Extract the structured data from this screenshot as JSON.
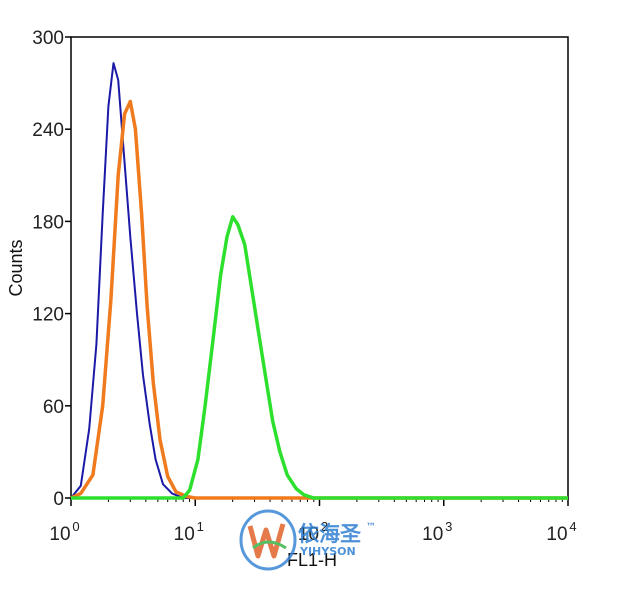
{
  "chart_data": {
    "type": "line",
    "xscale": "log",
    "xlim": [
      1,
      10000
    ],
    "ylim": [
      0,
      300
    ],
    "xlabel": "FL1-H",
    "ylabel": "Counts",
    "x_ticks": [
      {
        "base": "10",
        "exp": "0",
        "value": 1
      },
      {
        "base": "10",
        "exp": "1",
        "value": 10
      },
      {
        "base": "10",
        "exp": "2",
        "value": 100
      },
      {
        "base": "10",
        "exp": "3",
        "value": 1000
      },
      {
        "base": "10",
        "exp": "4",
        "value": 10000
      }
    ],
    "y_ticks": [
      "0",
      "60",
      "120",
      "180",
      "240",
      "300"
    ],
    "series": [
      {
        "color": "#1a1aa6",
        "x": [
          1.0,
          1.2,
          1.4,
          1.6,
          1.8,
          2.0,
          2.2,
          2.4,
          2.7,
          3.0,
          3.4,
          3.8,
          4.3,
          4.8,
          5.5,
          6.5,
          8.0,
          10.0,
          100.0,
          10000.0
        ],
        "y": [
          0,
          8,
          45,
          100,
          185,
          255,
          283,
          272,
          218,
          170,
          120,
          80,
          48,
          25,
          9,
          3,
          0,
          0,
          0,
          0
        ]
      },
      {
        "color": "#f07a1e",
        "x": [
          1.0,
          1.2,
          1.5,
          1.8,
          2.1,
          2.4,
          2.7,
          3.0,
          3.3,
          3.7,
          4.1,
          4.6,
          5.2,
          6.0,
          7.0,
          8.5,
          10.0,
          100.0,
          10000.0
        ],
        "y": [
          0,
          3,
          15,
          60,
          130,
          210,
          250,
          258,
          240,
          185,
          125,
          75,
          38,
          14,
          4,
          1,
          0,
          0,
          0
        ]
      },
      {
        "color": "#2ee02e",
        "x": [
          1.0,
          8.0,
          9.0,
          10.5,
          12.0,
          14.0,
          16.0,
          18.0,
          20.0,
          22.0,
          25.0,
          28.0,
          32.0,
          37.0,
          42.0,
          48.0,
          55.0,
          65.0,
          75.0,
          90.0,
          110.0,
          1000.0,
          10000.0
        ],
        "y": [
          0,
          0,
          5,
          25,
          60,
          105,
          145,
          170,
          183,
          178,
          165,
          140,
          110,
          78,
          50,
          30,
          15,
          6,
          2,
          0,
          0,
          0,
          0
        ]
      }
    ]
  },
  "watermark": {
    "brand_cn": "依海圣",
    "brand_en": "YIHYSON",
    "trademark": "™"
  }
}
